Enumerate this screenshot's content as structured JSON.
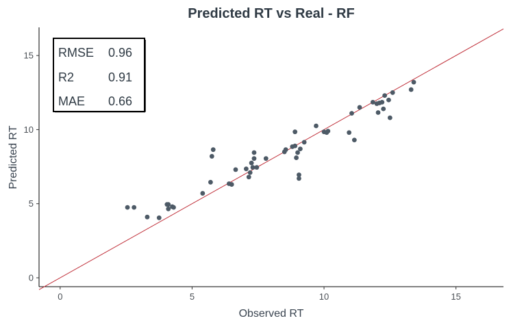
{
  "chart_data": {
    "type": "scatter",
    "title": "Predicted RT vs Real - RF",
    "xlabel": "Observed RT",
    "ylabel": "Predicted RT",
    "xlim": [
      -0.8,
      16.8
    ],
    "ylim": [
      -0.6,
      16.9
    ],
    "xticks": [
      0,
      5,
      10,
      15
    ],
    "yticks": [
      0,
      5,
      10,
      15
    ],
    "grid": false,
    "point_color": "#4d5a66",
    "reference_line": {
      "slope": 1,
      "intercept": 0,
      "color": "#c0303a"
    },
    "metrics": [
      {
        "label": "RMSE",
        "value": "0.96"
      },
      {
        "label": "R2",
        "value": "0.91"
      },
      {
        "label": "MAE",
        "value": "0.66"
      }
    ],
    "points": [
      {
        "x": 2.55,
        "y": 4.75
      },
      {
        "x": 2.8,
        "y": 4.75
      },
      {
        "x": 3.3,
        "y": 4.1
      },
      {
        "x": 3.75,
        "y": 4.05
      },
      {
        "x": 4.05,
        "y": 4.95
      },
      {
        "x": 4.1,
        "y": 4.95
      },
      {
        "x": 4.1,
        "y": 4.65
      },
      {
        "x": 4.25,
        "y": 4.8
      },
      {
        "x": 4.3,
        "y": 4.75
      },
      {
        "x": 5.4,
        "y": 5.7
      },
      {
        "x": 5.7,
        "y": 6.45
      },
      {
        "x": 5.75,
        "y": 8.2
      },
      {
        "x": 5.8,
        "y": 8.65
      },
      {
        "x": 6.4,
        "y": 6.35
      },
      {
        "x": 6.5,
        "y": 6.3
      },
      {
        "x": 6.65,
        "y": 7.3
      },
      {
        "x": 7.05,
        "y": 7.35
      },
      {
        "x": 7.15,
        "y": 6.8
      },
      {
        "x": 7.2,
        "y": 7.1
      },
      {
        "x": 7.25,
        "y": 7.75
      },
      {
        "x": 7.3,
        "y": 7.45
      },
      {
        "x": 7.35,
        "y": 8.05
      },
      {
        "x": 7.35,
        "y": 8.45
      },
      {
        "x": 7.45,
        "y": 7.45
      },
      {
        "x": 7.8,
        "y": 8.05
      },
      {
        "x": 8.5,
        "y": 8.5
      },
      {
        "x": 8.55,
        "y": 8.65
      },
      {
        "x": 8.8,
        "y": 8.85
      },
      {
        "x": 8.9,
        "y": 8.9
      },
      {
        "x": 8.9,
        "y": 9.85
      },
      {
        "x": 8.95,
        "y": 8.1
      },
      {
        "x": 9.0,
        "y": 8.45
      },
      {
        "x": 9.05,
        "y": 6.7
      },
      {
        "x": 9.05,
        "y": 6.95
      },
      {
        "x": 9.1,
        "y": 8.7
      },
      {
        "x": 9.25,
        "y": 9.15
      },
      {
        "x": 9.7,
        "y": 10.25
      },
      {
        "x": 10.0,
        "y": 9.85
      },
      {
        "x": 10.1,
        "y": 9.8
      },
      {
        "x": 10.15,
        "y": 9.9
      },
      {
        "x": 10.95,
        "y": 9.8
      },
      {
        "x": 11.05,
        "y": 11.1
      },
      {
        "x": 11.15,
        "y": 9.3
      },
      {
        "x": 11.35,
        "y": 11.5
      },
      {
        "x": 11.85,
        "y": 11.85
      },
      {
        "x": 12.0,
        "y": 11.75
      },
      {
        "x": 12.05,
        "y": 11.15
      },
      {
        "x": 12.1,
        "y": 11.8
      },
      {
        "x": 12.2,
        "y": 11.85
      },
      {
        "x": 12.25,
        "y": 11.4
      },
      {
        "x": 12.3,
        "y": 12.3
      },
      {
        "x": 12.45,
        "y": 12.0
      },
      {
        "x": 12.5,
        "y": 10.8
      },
      {
        "x": 12.6,
        "y": 12.5
      },
      {
        "x": 13.3,
        "y": 12.7
      },
      {
        "x": 13.4,
        "y": 13.2
      }
    ]
  }
}
